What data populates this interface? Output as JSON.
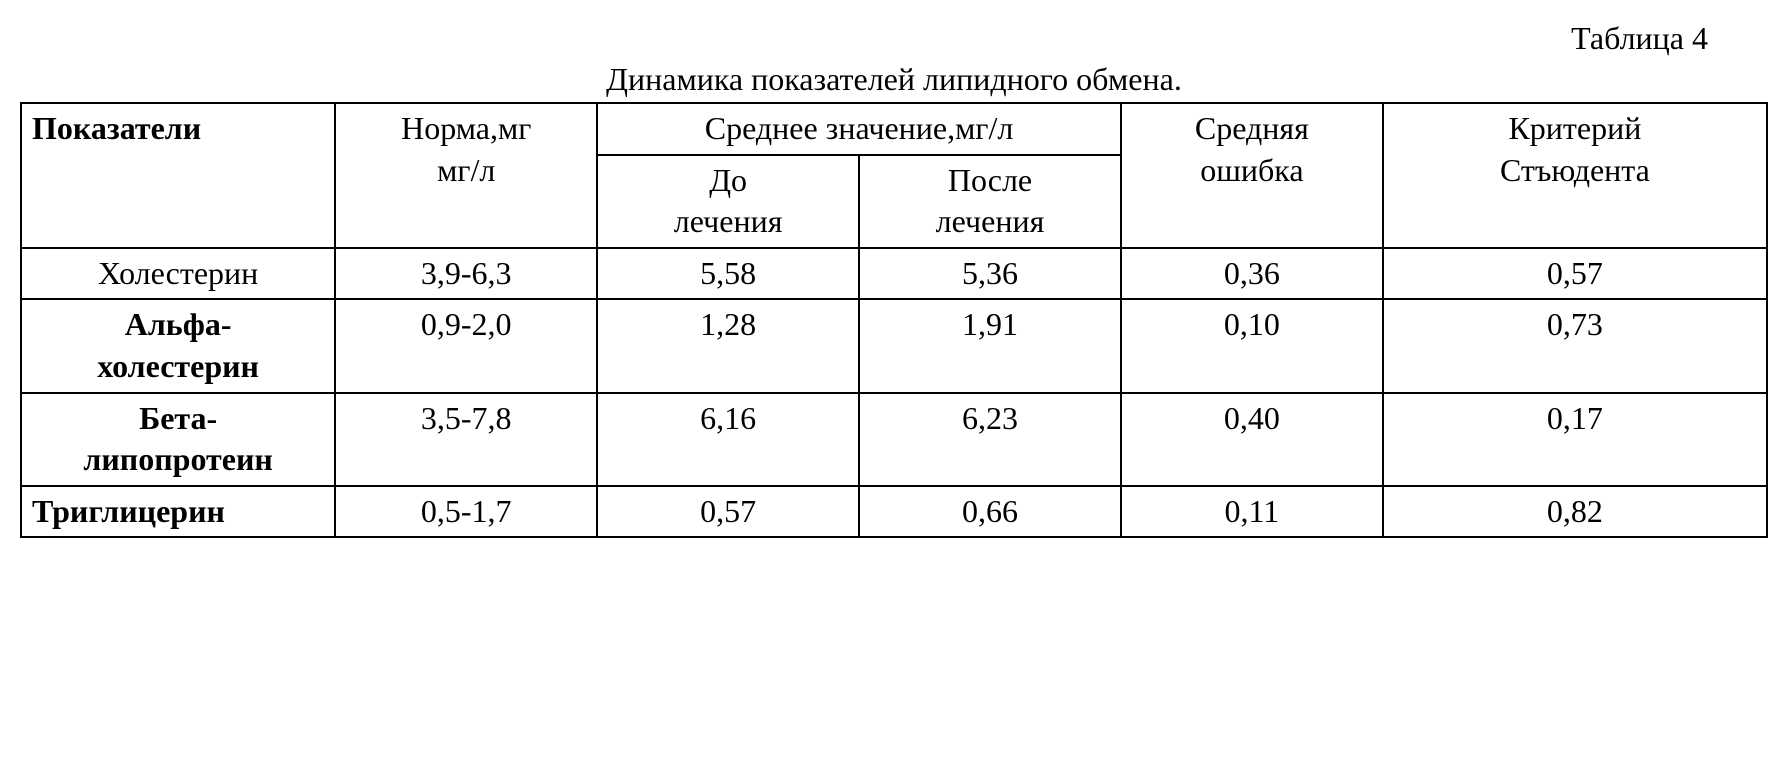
{
  "table": {
    "type": "table",
    "label": "Таблица 4",
    "title": "Динамика показателей липидного обмена.",
    "background_color": "#ffffff",
    "border_color": "#000000",
    "font_family": "Times New Roman",
    "title_fontsize": 32,
    "cell_fontsize": 32,
    "headers": {
      "col1": "Показатели",
      "col2_line1": "Норма,мг",
      "col2_line2": "мг/л",
      "col34": "Среднее значение,мг/л",
      "col3_line1": "До",
      "col3_line2": "лечения",
      "col4_line1": "После",
      "col4_line2": "лечения",
      "col5_line1": "Средняя",
      "col5_line2": "ошибка",
      "col6_line1": "Критерий",
      "col6_line2": "Стъюдента"
    },
    "rows": [
      {
        "indicator": "Холестерин",
        "bold": false,
        "align": "center",
        "norm": "3,9-6,3",
        "before": "5,58",
        "after": "5,36",
        "error": "0,36",
        "student": "0,57"
      },
      {
        "indicator_line1": "Альфа-",
        "indicator_line2": "холестерин",
        "bold": true,
        "align": "center",
        "norm": "0,9-2,0",
        "before": "1,28",
        "after": "1,91",
        "error": "0,10",
        "student": "0,73"
      },
      {
        "indicator_line1": "Бета-",
        "indicator_line2": "липопротеин",
        "bold": true,
        "align": "center",
        "norm": "3,5-7,8",
        "before": "6,16",
        "after": "6,23",
        "error": "0,40",
        "student": "0,17"
      },
      {
        "indicator": "Триглицерин",
        "bold": true,
        "align": "left",
        "norm": "0,5-1,7",
        "before": "0,57",
        "after": "0,66",
        "error": "0,11",
        "student": "0,82"
      }
    ],
    "column_widths_pct": [
      18,
      15,
      15,
      15,
      15,
      22
    ]
  }
}
